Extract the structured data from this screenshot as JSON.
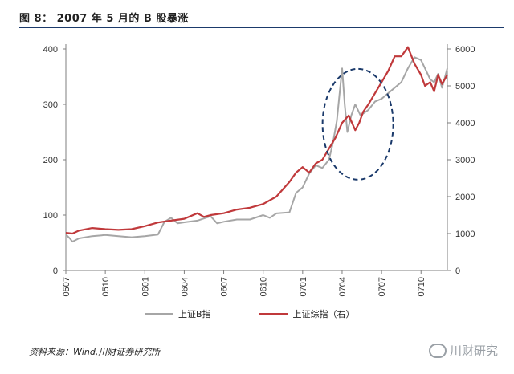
{
  "title": "图 8：  2007 年 5 月的 B 股暴涨",
  "source": "资料来源：Wind,川财证券研究所",
  "watermark": "川财研究",
  "legend": {
    "series1": "上证B指",
    "series2": "上证综指（右）"
  },
  "colors": {
    "series1": "#a6a6a6",
    "series2": "#c0393b",
    "ellipse": "#1b3a6b"
  },
  "chart_data": {
    "type": "line",
    "title": "2007 年 5 月的 B 股暴涨",
    "x_ticks": [
      "0507",
      "0510",
      "0601",
      "0604",
      "0607",
      "0610",
      "0701",
      "0704",
      "0707",
      "0710"
    ],
    "y_left": {
      "ticks": [
        0,
        100,
        200,
        300,
        400
      ],
      "range": [
        0,
        400
      ]
    },
    "y_right": {
      "ticks": [
        0,
        1000,
        2000,
        3000,
        4000,
        5000,
        6000
      ],
      "range": [
        0,
        6000
      ]
    },
    "series": [
      {
        "name": "上证B指",
        "axis": "left",
        "t": [
          0,
          0.3,
          0.5,
          1,
          2,
          3,
          4,
          5,
          6,
          7,
          7.5,
          8,
          8.5,
          9,
          10,
          11,
          11.5,
          12,
          13,
          14,
          15,
          15.5,
          16,
          17,
          17.5,
          18,
          18.5,
          19,
          19.5,
          20,
          20.3,
          20.6,
          21,
          21.2,
          21.4,
          21.7,
          22,
          22.4,
          23,
          23.5,
          24,
          24.5,
          25,
          25.5,
          26,
          26.5,
          27,
          27.3,
          27.7,
          28,
          28.3,
          28.6,
          29
        ],
        "values": [
          65,
          58,
          52,
          58,
          62,
          64,
          62,
          60,
          62,
          65,
          88,
          95,
          85,
          87,
          90,
          98,
          85,
          88,
          92,
          92,
          100,
          95,
          103,
          105,
          140,
          150,
          175,
          190,
          185,
          200,
          230,
          270,
          365,
          300,
          250,
          280,
          300,
          280,
          290,
          305,
          310,
          320,
          330,
          340,
          365,
          385,
          380,
          365,
          345,
          340,
          355,
          330,
          365
        ]
      },
      {
        "name": "上证综指（右）",
        "axis": "right",
        "t": [
          0,
          0.5,
          1,
          2,
          3,
          4,
          5,
          6,
          7,
          8,
          9,
          10,
          10.5,
          11,
          12,
          13,
          14,
          15,
          16,
          17,
          17.5,
          18,
          18.5,
          19,
          19.5,
          20,
          20.5,
          21,
          21.5,
          22,
          22.3,
          22.6,
          23,
          23.5,
          24,
          24.5,
          25,
          25.5,
          26,
          26.5,
          27,
          27.3,
          27.7,
          28,
          28.3,
          28.6,
          29
        ],
        "values": [
          1020,
          1000,
          1080,
          1150,
          1120,
          1100,
          1120,
          1200,
          1300,
          1350,
          1400,
          1550,
          1450,
          1500,
          1550,
          1650,
          1700,
          1800,
          2000,
          2400,
          2650,
          2800,
          2650,
          2900,
          3000,
          3300,
          3600,
          4000,
          4200,
          3800,
          4000,
          4300,
          4500,
          4800,
          5100,
          5400,
          5800,
          5800,
          6050,
          5600,
          5300,
          5000,
          5100,
          4850,
          5300,
          5050,
          5300
        ]
      }
    ],
    "annotation": "dashed ellipse highlighting May 2007 surge"
  }
}
